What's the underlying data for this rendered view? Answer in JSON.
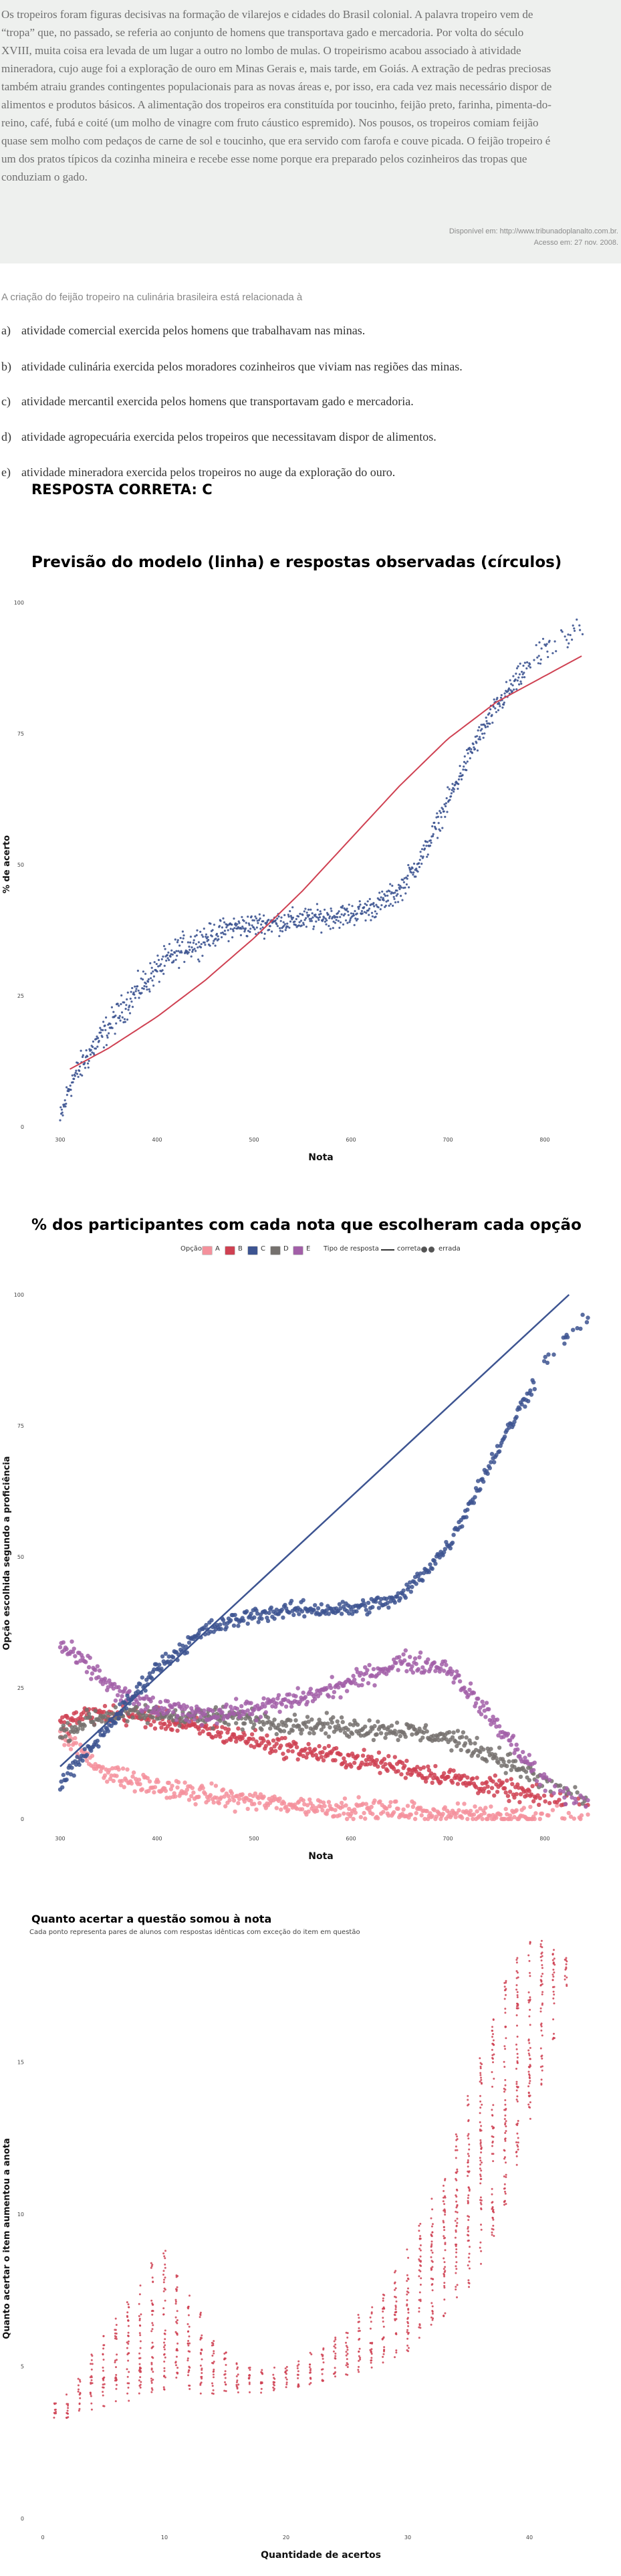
{
  "passage": {
    "lines": [
      "Os tropeiros foram figuras decisivas na formação de vilarejos e cidades do Brasil colonial. A palavra tropeiro vem de",
      "“tropa” que, no passado, se referia ao conjunto de homens que transportava gado e mercadoria. Por volta do século",
      "XVIII, muita coisa era levada de um lugar a outro no lombo de mulas. O tropeirismo acabou associado à atividade",
      "mineradora, cujo auge foi a exploração de ouro em Minas Gerais e, mais tarde, em Goiás. A extração de pedras preciosas",
      "também atraiu grandes contingentes populacionais para as novas áreas e, por isso, era cada vez mais necessário dispor de",
      "alimentos e produtos básicos. A alimentação dos tropeiros era constituída por toucinho, feijão preto, farinha, pimenta-do-",
      "reino, café, fubá e coité (um molho de vinagre com fruto cáustico espremido). Nos pousos, os tropeiros comiam feijão",
      "quase sem molho com pedaços de carne de sol e toucinho, que era servido com farofa e couve picada. O feijão tropeiro é",
      "um dos pratos típicos da cozinha mineira e recebe esse nome porque era preparado pelos cozinheiros das tropas que",
      "conduziam o gado."
    ],
    "source_line1": "Disponível em: http://www.tribunadoplanalto.com.br.",
    "source_line2": "Acesso em: 27 nov. 2008."
  },
  "question": "A criação do feijão tropeiro na culinária brasileira está relacionada à",
  "options": [
    {
      "letter": "a)",
      "text": "atividade comercial exercida pelos homens que trabalhavam nas minas."
    },
    {
      "letter": "b)",
      "text": "atividade culinária exercida pelos moradores cozinheiros que viviam nas regiões das minas."
    },
    {
      "letter": "c)",
      "text": "atividade mercantil exercida pelos homens que transportavam gado e mercadoria."
    },
    {
      "letter": "d)",
      "text": "atividade agropecuária exercida pelos tropeiros que necessitavam dispor de alimentos."
    },
    {
      "letter": "e)",
      "text": "atividade mineradora exercida pelos tropeiros no auge da exploração do ouro."
    }
  ],
  "answer": "RESPOSTA CORRETA: C",
  "legend": {
    "option_title": "Opção",
    "options": [
      "A",
      "B",
      "C",
      "D",
      "E"
    ],
    "type_title": "Tipo de resposta",
    "types": [
      "correta",
      "errada"
    ]
  },
  "colors": {
    "A": "#f4919c",
    "B": "#cf4152",
    "C": "#3d5491",
    "D": "#75716e",
    "E": "#a25fa8",
    "model": "#cf4152",
    "obs": "#3d5491",
    "gain": "#cf4152"
  },
  "chart_data": [
    {
      "type": "line",
      "title": "Previsão do modelo (linha) e respostas observadas (círculos)",
      "xlabel": "Nota",
      "ylabel": "% de acerto",
      "xlim": [
        290,
        850
      ],
      "ylim": [
        0,
        100
      ],
      "xticks": [
        300,
        400,
        500,
        600,
        700,
        800
      ],
      "yticks": [
        0,
        25,
        50,
        75,
        100
      ],
      "series": [
        {
          "kind": "line",
          "x": [
            310,
            350,
            400,
            450,
            500,
            550,
            600,
            650,
            700,
            750,
            800,
            840
          ],
          "y": [
            11,
            15,
            21,
            28,
            36,
            45,
            55,
            65,
            74,
            81,
            86,
            90
          ]
        },
        {
          "kind": "points",
          "x": [
            300,
            310,
            330,
            350,
            375,
            400,
            425,
            450,
            475,
            500,
            525,
            550,
            575,
            600,
            625,
            650,
            675,
            700,
            725,
            750,
            775,
            800,
            825,
            840
          ],
          "y": [
            1,
            8,
            14,
            19,
            25,
            30,
            34,
            36,
            38,
            38.5,
            39,
            39.5,
            40,
            40.5,
            42,
            45,
            52,
            62,
            72,
            80,
            86,
            91,
            94,
            95
          ]
        }
      ]
    },
    {
      "type": "scatter",
      "title": "% dos participantes com cada nota que escolheram cada opção",
      "xlabel": "Nota",
      "ylabel": "Opção escolhida segundo a proficiência",
      "xlim": [
        290,
        850
      ],
      "ylim": [
        0,
        100
      ],
      "xticks": [
        300,
        400,
        500,
        600,
        700,
        800
      ],
      "yticks": [
        0,
        25,
        50,
        75,
        100
      ],
      "x": [
        300,
        330,
        360,
        400,
        450,
        500,
        550,
        600,
        650,
        700,
        750,
        800,
        840
      ],
      "series": [
        {
          "name": "A",
          "values": [
            17,
            11,
            8,
            6,
            4.5,
            3.5,
            2.5,
            2,
            1.5,
            1,
            0.8,
            0.6,
            0.5
          ]
        },
        {
          "name": "B",
          "values": [
            18,
            20,
            20,
            19,
            17,
            15,
            13,
            11.5,
            10,
            8,
            6,
            4,
            2.5
          ]
        },
        {
          "name": "C",
          "values": [
            7,
            13,
            20,
            29,
            36,
            39,
            40,
            40,
            42,
            52,
            70,
            87,
            95
          ]
        },
        {
          "name": "D",
          "values": [
            16,
            19,
            20,
            20,
            19.5,
            19,
            18,
            17.5,
            17,
            15.5,
            12,
            7,
            4
          ]
        },
        {
          "name": "E",
          "values": [
            33,
            29,
            24,
            21,
            20,
            21,
            23,
            26,
            30,
            29,
            18,
            7,
            3
          ]
        }
      ],
      "correct_line": {
        "x": [
          300,
          825
        ],
        "y": [
          10,
          100
        ]
      }
    },
    {
      "type": "scatter",
      "title": "Quanto acertar a questão somou à nota",
      "subtitle": "Cada ponto representa pares de alunos com respostas idênticas com exceção do item em questão",
      "xlabel": "Quantidade de acertos",
      "ylabel": "Quanto acertar o item aumentou a anota",
      "xlim": [
        0,
        44
      ],
      "ylim": [
        0,
        20
      ],
      "xticks": [
        0,
        10,
        20,
        30,
        40
      ],
      "yticks": [
        0,
        5,
        10,
        15
      ],
      "columns": [
        {
          "x": 1,
          "min": 3.3,
          "max": 3.8
        },
        {
          "x": 2,
          "min": 3.3,
          "max": 4.1
        },
        {
          "x": 3,
          "min": 3.4,
          "max": 4.6
        },
        {
          "x": 4,
          "min": 3.5,
          "max": 5.4
        },
        {
          "x": 5,
          "min": 3.6,
          "max": 6.0
        },
        {
          "x": 6,
          "min": 3.7,
          "max": 6.6
        },
        {
          "x": 7,
          "min": 3.8,
          "max": 7.3
        },
        {
          "x": 8,
          "min": 4.0,
          "max": 7.9
        },
        {
          "x": 9,
          "min": 4.1,
          "max": 8.5
        },
        {
          "x": 10,
          "min": 4.2,
          "max": 8.8
        },
        {
          "x": 11,
          "min": 4.2,
          "max": 8.1
        },
        {
          "x": 12,
          "min": 4.1,
          "max": 7.4
        },
        {
          "x": 13,
          "min": 4.1,
          "max": 6.8
        },
        {
          "x": 14,
          "min": 4.0,
          "max": 6.1
        },
        {
          "x": 15,
          "min": 4.0,
          "max": 5.5
        },
        {
          "x": 16,
          "min": 4.0,
          "max": 5.2
        },
        {
          "x": 17,
          "min": 4.1,
          "max": 5.0
        },
        {
          "x": 18,
          "min": 4.1,
          "max": 4.9
        },
        {
          "x": 19,
          "min": 4.2,
          "max": 5.0
        },
        {
          "x": 20,
          "min": 4.3,
          "max": 5.1
        },
        {
          "x": 21,
          "min": 4.3,
          "max": 5.3
        },
        {
          "x": 22,
          "min": 4.4,
          "max": 5.5
        },
        {
          "x": 23,
          "min": 4.5,
          "max": 5.7
        },
        {
          "x": 24,
          "min": 4.6,
          "max": 6.0
        },
        {
          "x": 25,
          "min": 4.7,
          "max": 6.3
        },
        {
          "x": 26,
          "min": 4.8,
          "max": 6.7
        },
        {
          "x": 27,
          "min": 4.9,
          "max": 7.1
        },
        {
          "x": 28,
          "min": 5.1,
          "max": 7.6
        },
        {
          "x": 29,
          "min": 5.3,
          "max": 8.2
        },
        {
          "x": 30,
          "min": 5.5,
          "max": 8.9
        },
        {
          "x": 31,
          "min": 5.8,
          "max": 9.7
        },
        {
          "x": 32,
          "min": 6.1,
          "max": 10.6
        },
        {
          "x": 33,
          "min": 6.5,
          "max": 11.6
        },
        {
          "x": 34,
          "min": 7.0,
          "max": 12.7
        },
        {
          "x": 35,
          "min": 7.6,
          "max": 13.9
        },
        {
          "x": 36,
          "min": 8.3,
          "max": 15.2
        },
        {
          "x": 37,
          "min": 9.2,
          "max": 16.5
        },
        {
          "x": 38,
          "min": 10.3,
          "max": 17.7
        },
        {
          "x": 39,
          "min": 11.5,
          "max": 18.5
        },
        {
          "x": 40,
          "min": 12.8,
          "max": 19.0
        },
        {
          "x": 41,
          "min": 14.2,
          "max": 19.0
        },
        {
          "x": 42,
          "min": 15.7,
          "max": 18.8
        },
        {
          "x": 43,
          "min": 17.5,
          "max": 18.5
        }
      ]
    }
  ]
}
